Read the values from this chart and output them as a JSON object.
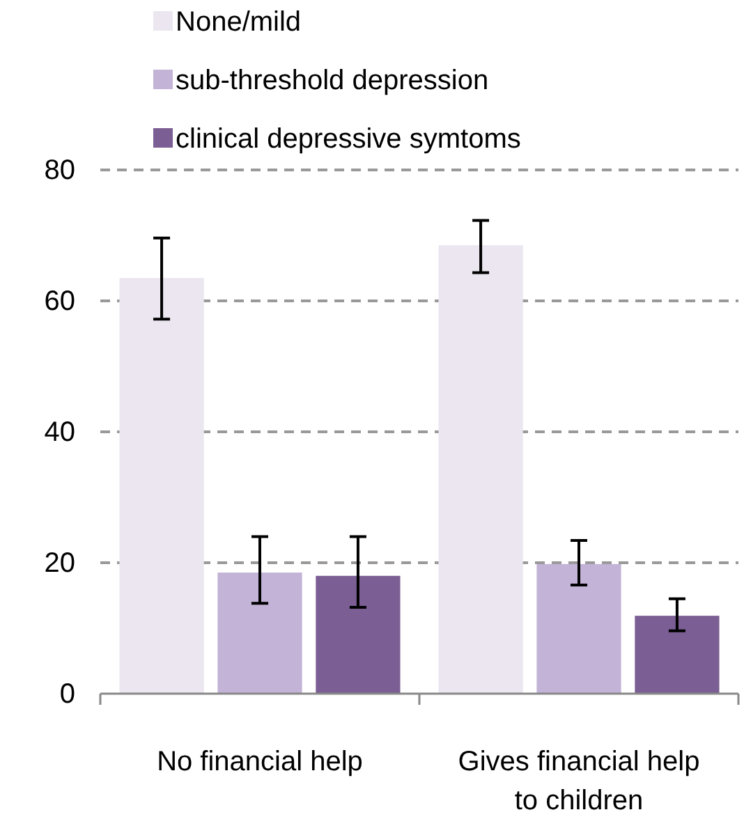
{
  "chart_data": {
    "type": "bar",
    "categories": [
      "No financial help",
      "Gives financial help to children"
    ],
    "series": [
      {
        "name": "None/mild",
        "color": "#ebe6f0",
        "values": [
          63.5,
          68.5
        ],
        "errors": [
          [
            57.2,
            69.6
          ],
          [
            64.3,
            72.3
          ]
        ]
      },
      {
        "name": "sub-threshold depression",
        "color": "#c3b3d6",
        "values": [
          18.5,
          19.8
        ],
        "errors": [
          [
            13.8,
            24
          ],
          [
            16.6,
            23.4
          ]
        ]
      },
      {
        "name": "clinical depressive symtoms",
        "color": "#7b5e93",
        "values": [
          18,
          11.9
        ],
        "errors": [
          [
            13.2,
            24
          ],
          [
            9.6,
            14.5
          ]
        ]
      }
    ],
    "ylim": [
      0,
      80
    ],
    "yticks": [
      0,
      20,
      40,
      60,
      80
    ],
    "grid": "y",
    "legend": "top"
  }
}
